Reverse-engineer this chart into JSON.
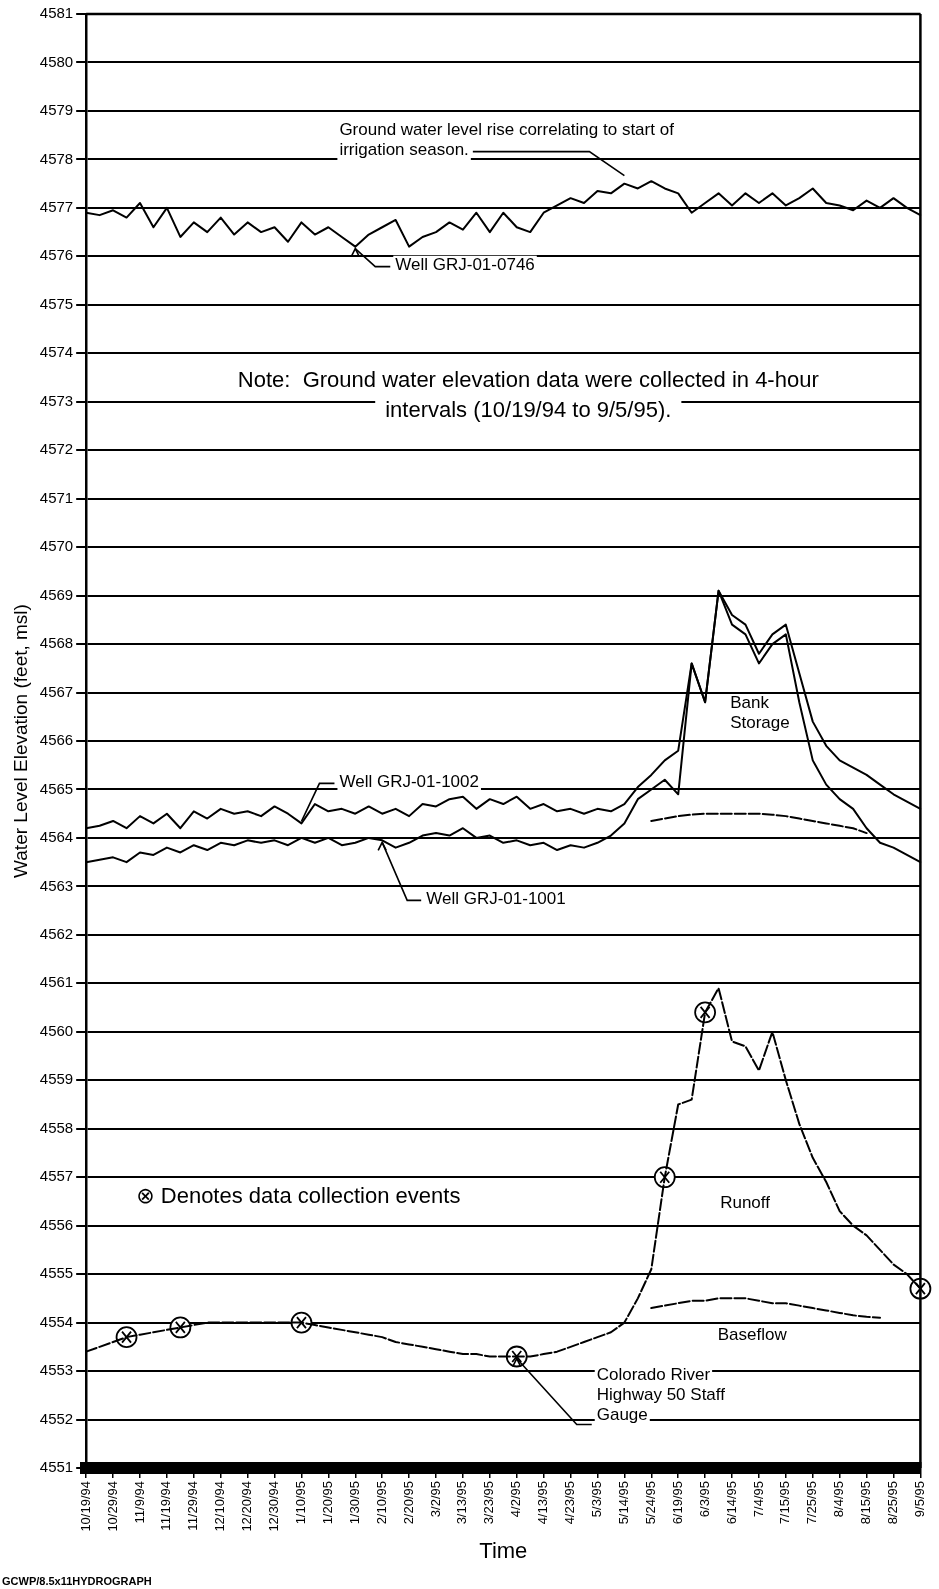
{
  "chart_data": {
    "type": "line",
    "xlabel": "Time",
    "ylabel": "Water Level Elevation (feet, msl)",
    "categories": [
      "10/19/94",
      null,
      "10/29/94",
      null,
      "11/9/94",
      null,
      "11/19/94",
      null,
      "11/29/94",
      null,
      "12/10/94",
      null,
      "12/20/94",
      null,
      "12/30/94",
      null,
      "1/10/95",
      null,
      "1/20/95",
      null,
      "1/30/95",
      null,
      "2/10/95",
      null,
      "2/20/95",
      null,
      "3/2/95",
      null,
      "3/13/95",
      null,
      "3/23/95",
      null,
      "4/2/95",
      null,
      "4/13/95",
      null,
      "4/23/95",
      null,
      "5/3/95",
      null,
      "5/14/95",
      null,
      "5/24/95",
      null,
      "6/19/95",
      null,
      "6/3/95",
      null,
      "6/14/95",
      null,
      "7/4/95",
      null,
      "7/15/95",
      null,
      "7/25/95",
      null,
      "8/4/95",
      null,
      "8/15/95",
      null,
      "8/25/95",
      null,
      "9/5/95"
    ],
    "ylim": [
      4551,
      4581
    ],
    "yticks": [
      4551,
      4552,
      4553,
      4554,
      4555,
      4556,
      4557,
      4558,
      4559,
      4560,
      4561,
      4562,
      4563,
      4564,
      4565,
      4566,
      4567,
      4568,
      4569,
      4570,
      4571,
      4572,
      4573,
      4574,
      4575,
      4576,
      4577,
      4578,
      4579,
      4580,
      4581
    ],
    "grid": "y",
    "legend": false,
    "marker": "none",
    "line_style": "solid",
    "series": [
      {
        "color": "#000000",
        "values": [
          4576.9,
          4576.85,
          4576.95,
          4576.8,
          4577.1,
          4576.6,
          4577.0,
          4576.4,
          4576.7,
          4576.5,
          4576.8,
          4576.45,
          4576.7,
          4576.5,
          4576.6,
          4576.3,
          4576.7,
          4576.45,
          4576.6,
          4576.4,
          4576.2,
          4576.45,
          4576.6,
          4576.75,
          4576.2,
          4576.4,
          4576.5,
          4576.7,
          4576.55,
          4576.9,
          4576.5,
          4576.9,
          4576.6,
          4576.5,
          4576.9,
          4577.05,
          4577.2,
          4577.1,
          4577.35,
          4577.3,
          4577.5,
          4577.4,
          4577.55,
          4577.4,
          4577.3,
          4576.9,
          4577.1,
          4577.3,
          4577.05,
          4577.3,
          4577.1,
          4577.3,
          4577.05,
          4577.2,
          4577.4,
          4577.1,
          4577.05,
          4576.95,
          4577.15,
          4577.0,
          4577.2,
          4577.0,
          4576.85
        ]
      },
      {
        "color": "#000000",
        "values": [
          4564.2,
          4564.25,
          4564.35,
          4564.2,
          4564.45,
          4564.3,
          4564.5,
          4564.2,
          4564.55,
          4564.4,
          4564.6,
          4564.5,
          4564.55,
          4564.45,
          4564.65,
          4564.5,
          4564.3,
          4564.7,
          4564.55,
          4564.6,
          4564.5,
          4564.65,
          4564.5,
          4564.6,
          4564.45,
          4564.7,
          4564.65,
          4564.8,
          4564.85,
          4564.6,
          4564.8,
          4564.7,
          4564.85,
          4564.6,
          4564.7,
          4564.55,
          4564.6,
          4564.5,
          4564.6,
          4564.55,
          4564.7,
          4565.05,
          4565.3,
          4565.6,
          4565.8,
          4567.6,
          4566.8,
          4569.1,
          4568.6,
          4568.4,
          4567.8,
          4568.2,
          4568.4,
          4567.4,
          4566.4,
          4565.9,
          4565.6,
          4565.45,
          4565.3,
          4565.1,
          4564.9,
          4564.75,
          4564.6
        ]
      },
      {
        "color": "#000000",
        "values": [
          4563.5,
          4563.55,
          4563.6,
          4563.5,
          4563.7,
          4563.65,
          4563.8,
          4563.7,
          4563.85,
          4563.75,
          4563.9,
          4563.85,
          4563.95,
          4563.9,
          4563.95,
          4563.85,
          4564.0,
          4563.9,
          4564.0,
          4563.85,
          4563.9,
          4564.0,
          4563.95,
          4563.8,
          4563.9,
          4564.05,
          4564.1,
          4564.05,
          4564.2,
          4564.0,
          4564.05,
          4563.9,
          4563.95,
          4563.85,
          4563.9,
          4563.75,
          4563.85,
          4563.8,
          4563.9,
          4564.05,
          4564.3,
          4564.8,
          4565.0,
          4565.2,
          4564.9,
          4567.6,
          4566.8,
          4569.1,
          4568.4,
          4568.2,
          4567.6,
          4568.0,
          4568.2,
          4566.8,
          4565.6,
          4565.1,
          4564.8,
          4564.6,
          4564.2,
          4563.9,
          4563.8,
          4563.65,
          4563.5
        ]
      },
      {
        "color": "#000000",
        "line_style": "dashed",
        "values": [
          null,
          null,
          null,
          null,
          null,
          null,
          null,
          null,
          null,
          null,
          null,
          null,
          null,
          null,
          null,
          null,
          null,
          null,
          null,
          null,
          null,
          null,
          null,
          null,
          null,
          null,
          null,
          null,
          null,
          null,
          null,
          null,
          null,
          null,
          null,
          null,
          null,
          null,
          null,
          null,
          null,
          null,
          4564.35,
          4564.4,
          4564.45,
          4564.48,
          4564.5,
          4564.5,
          4564.5,
          4564.5,
          4564.5,
          4564.48,
          4564.45,
          4564.4,
          4564.35,
          4564.3,
          4564.25,
          4564.2,
          4564.1,
          null,
          null,
          null,
          null
        ]
      },
      {
        "color": "#000000",
        "line_style": "dashed",
        "values": [
          4553.4,
          4553.5,
          4553.6,
          4553.7,
          4553.75,
          4553.8,
          4553.85,
          4553.9,
          4553.95,
          4554.0,
          4554.0,
          4554.0,
          4554.0,
          4554.0,
          4554.0,
          4554.0,
          4554.0,
          4553.95,
          4553.9,
          4553.85,
          4553.8,
          4553.75,
          4553.7,
          4553.6,
          4553.55,
          4553.5,
          4553.45,
          4553.4,
          4553.35,
          4553.35,
          4553.3,
          4553.3,
          4553.3,
          4553.3,
          4553.35,
          4553.4,
          4553.5,
          4553.6,
          4553.7,
          4553.8,
          4554.0,
          4554.5,
          4555.1,
          4557.0,
          4558.5,
          4558.6,
          4560.4,
          4560.9,
          4559.8,
          4559.7,
          4559.2,
          4560.0,
          4559.0,
          4558.1,
          4557.4,
          4556.9,
          4556.3,
          4556.0,
          4555.8,
          4555.5,
          4555.2,
          4555.0,
          4554.7
        ]
      },
      {
        "color": "#000000",
        "line_style": "dashed",
        "values": [
          null,
          null,
          null,
          null,
          null,
          null,
          null,
          null,
          null,
          null,
          null,
          null,
          null,
          null,
          null,
          null,
          null,
          null,
          null,
          null,
          null,
          null,
          null,
          null,
          null,
          null,
          null,
          null,
          null,
          null,
          null,
          null,
          null,
          null,
          null,
          null,
          null,
          null,
          null,
          null,
          null,
          null,
          4554.3,
          4554.35,
          4554.4,
          4554.45,
          4554.45,
          4554.5,
          4554.5,
          4554.5,
          4554.45,
          4554.4,
          4554.4,
          4554.35,
          4554.3,
          4554.25,
          4554.2,
          4554.15,
          4554.12,
          4554.1,
          null,
          null,
          null
        ]
      },
      {
        "type": "scatter",
        "color": "#000000",
        "marker": "circle",
        "values": [
          null,
          null,
          null,
          4553.7,
          null,
          null,
          null,
          4553.9,
          null,
          null,
          null,
          null,
          null,
          null,
          null,
          null,
          4554.0,
          null,
          null,
          null,
          null,
          null,
          null,
          null,
          null,
          null,
          null,
          null,
          null,
          null,
          null,
          null,
          4553.3,
          null,
          null,
          null,
          null,
          null,
          null,
          null,
          null,
          null,
          null,
          4557.0,
          null,
          null,
          4560.4,
          null,
          null,
          null,
          null,
          null,
          null,
          null,
          null,
          null,
          null,
          null,
          null,
          null,
          null,
          null,
          4554.7
        ]
      }
    ],
    "annotations": [
      {
        "text": "Ground water level rise correlating to start of irrigation season.",
        "x": "5/14/95",
        "y": 4577.5
      },
      {
        "text": "Well GRJ-01-0746",
        "x": "1/30/95",
        "y": 4576.2
      },
      {
        "text": "Well GRJ-01-1002",
        "x": "1/10/95",
        "y": 4564.3
      },
      {
        "text": "Well GRJ-01-1001",
        "x": "2/10/95",
        "y": 4563.95
      },
      "Bank Storage",
      "Runoff",
      "Baseflow",
      {
        "text": "Colorado River Highway 50 Staff Gauge",
        "x": "4/2/95",
        "y": 4553.3
      },
      "Note:  Ground water elevation data were collected in 4-hour intervals (10/19/94 to 9/5/95).",
      "⊗ Denotes data collection events",
      "GCWP/8.5x11HYDROGRAPH"
    ]
  }
}
